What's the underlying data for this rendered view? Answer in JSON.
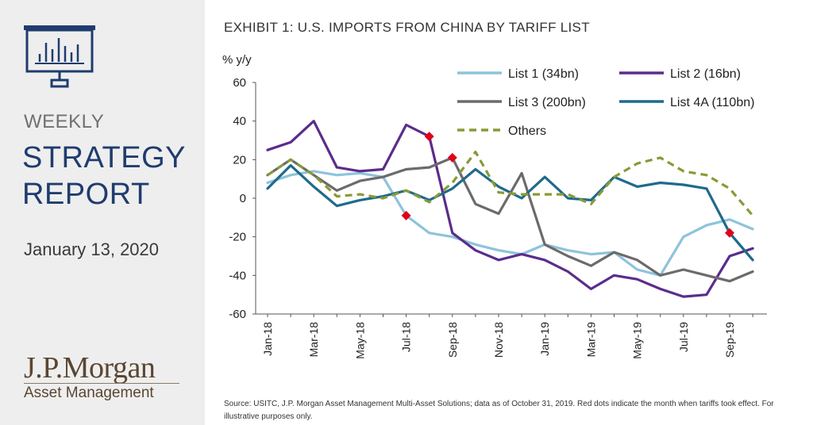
{
  "sidebar": {
    "weekly_label": "WEEKLY",
    "title_line1": "STRATEGY",
    "title_line2": "REPORT",
    "date": "January 13, 2020",
    "brand_name": "J.P.Morgan",
    "brand_sub": "Asset Management",
    "icon": "presentation-chart-icon"
  },
  "colors": {
    "list1": "#8dc3dc",
    "list2": "#5b2c8c",
    "list3": "#6b6b6b",
    "list4a": "#1f6a8c",
    "others": "#8a9a36",
    "markers": "#e0001a",
    "navy": "#1f3c6e",
    "brand": "#5a4631"
  },
  "chart_data": {
    "type": "line",
    "title": "EXHIBIT 1: U.S. IMPORTS FROM CHINA BY TARIFF LIST",
    "ylabel": "% y/y",
    "xlabel": "",
    "ylim": [
      -60,
      60
    ],
    "yticks": [
      60,
      40,
      20,
      0,
      -20,
      -40,
      -60
    ],
    "categories": [
      "Jan-18",
      "Feb-18",
      "Mar-18",
      "Apr-18",
      "May-18",
      "Jun-18",
      "Jul-18",
      "Aug-18",
      "Sep-18",
      "Oct-18",
      "Nov-18",
      "Dec-18",
      "Jan-19",
      "Feb-19",
      "Mar-19",
      "Apr-19",
      "May-19",
      "Jun-19",
      "Jul-19",
      "Aug-19",
      "Sep-19",
      "Oct-19"
    ],
    "xtick_labels": [
      "Jan-18",
      "",
      "Mar-18",
      "",
      "May-18",
      "",
      "Jul-18",
      "",
      "Sep-18",
      "",
      "Nov-18",
      "",
      "Jan-19",
      "",
      "Mar-19",
      "",
      "May-19",
      "",
      "Jul-19",
      "",
      "Sep-19",
      ""
    ],
    "series": [
      {
        "name": "List 1 (34bn)",
        "color_key": "list1",
        "dash": false,
        "values": [
          8,
          12,
          14,
          12,
          13,
          11,
          -9,
          -18,
          -20,
          -24,
          -27,
          -29,
          -24,
          -27,
          -29,
          -28,
          -37,
          -40,
          -20,
          -14,
          -11,
          -16
        ]
      },
      {
        "name": "List 2 (16bn)",
        "color_key": "list2",
        "dash": false,
        "values": [
          25,
          29,
          40,
          16,
          14,
          15,
          38,
          32,
          -18,
          -27,
          -32,
          -29,
          -32,
          -38,
          -47,
          -40,
          -42,
          -47,
          -51,
          -50,
          -30,
          -26
        ]
      },
      {
        "name": "List 3 (200bn)",
        "color_key": "list3",
        "dash": false,
        "values": [
          12,
          20,
          12,
          4,
          9,
          11,
          15,
          16,
          21,
          -3,
          -8,
          13,
          -24,
          -30,
          -35,
          -28,
          -32,
          -40,
          -37,
          -40,
          -43,
          -38
        ]
      },
      {
        "name": "List 4A (110bn)",
        "color_key": "list4a",
        "dash": false,
        "values": [
          5,
          17,
          6,
          -4,
          -1,
          1,
          4,
          -1,
          5,
          15,
          6,
          0,
          11,
          0,
          -1,
          11,
          6,
          8,
          7,
          5,
          -18,
          -32
        ]
      },
      {
        "name": "Others",
        "color_key": "others",
        "dash": true,
        "values": [
          12,
          20,
          12,
          1,
          2,
          0,
          4,
          -2,
          8,
          24,
          3,
          2,
          2,
          2,
          -3,
          11,
          18,
          21,
          14,
          12,
          5,
          -9
        ]
      }
    ],
    "tariff_markers": [
      {
        "x": "Jul-18",
        "y": -9
      },
      {
        "x": "Aug-18",
        "y": 32
      },
      {
        "x": "Sep-18",
        "y": 21
      },
      {
        "x": "Sep-19",
        "y": -18
      }
    ],
    "legend_position": "top-right",
    "grid": false
  },
  "footer": {
    "source_note": "Source: USITC, J.P. Morgan Asset Management Multi-Asset Solutions; data as of October 31, 2019. Red dots indicate the month when tariffs took effect. For illustrative purposes only."
  }
}
